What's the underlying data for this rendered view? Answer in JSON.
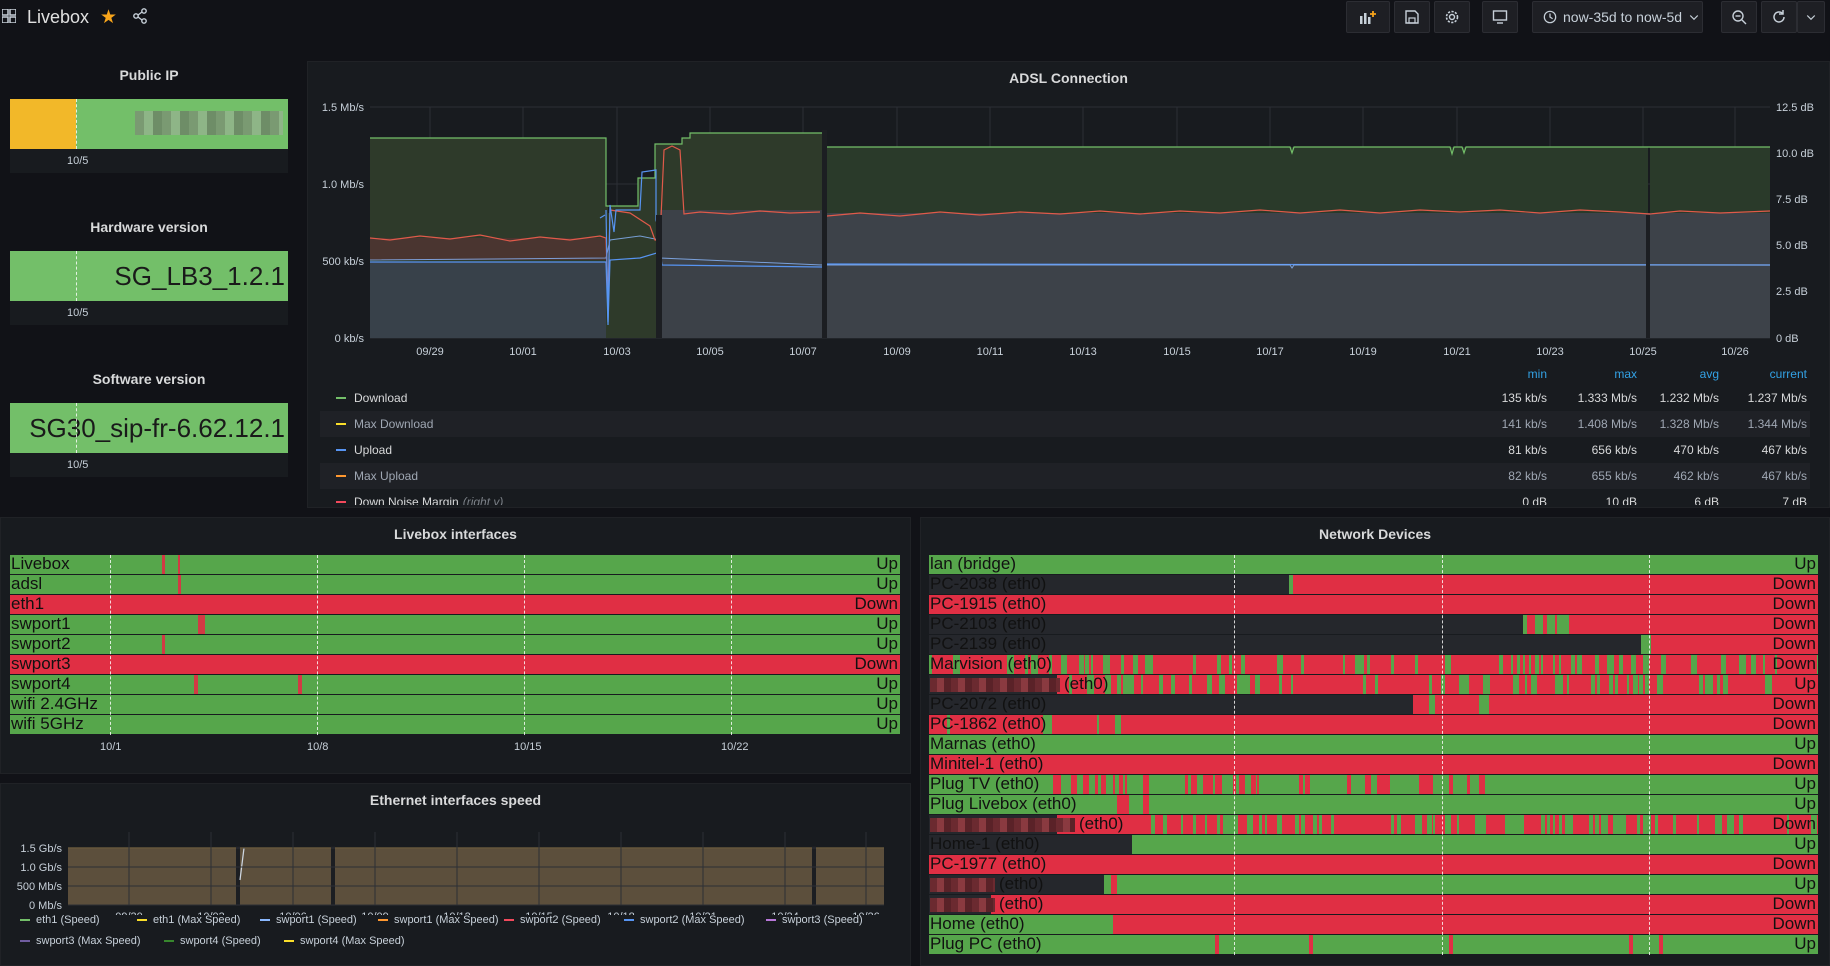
{
  "header": {
    "title": "Livebox",
    "time_range": "now-35d to now-5d"
  },
  "public_ip": {
    "title": "Public IP",
    "tick": "10/5"
  },
  "hardware": {
    "title": "Hardware version",
    "value": "SG_LB3_1.2.1",
    "tick": "10/5"
  },
  "software": {
    "title": "Software version",
    "value": "SG30_sip-fr-6.62.12.1",
    "tick": "10/5"
  },
  "adsl": {
    "title": "ADSL Connection",
    "chart_data": {
      "type": "line",
      "title": "ADSL Connection",
      "x_ticks": [
        "09/29",
        "10/01",
        "10/03",
        "10/05",
        "10/07",
        "10/09",
        "10/11",
        "10/13",
        "10/15",
        "10/17",
        "10/19",
        "10/21",
        "10/23",
        "10/25",
        "10/26"
      ],
      "y_left_ticks": [
        "0 kb/s",
        "500 kb/s",
        "1.0 Mb/s",
        "1.5 Mb/s"
      ],
      "y_right_ticks": [
        "0 dB",
        "2.5 dB",
        "5.0 dB",
        "7.5 dB",
        "10.0 dB",
        "12.5 dB"
      ],
      "series": [
        {
          "name": "Download",
          "color": "#73bf69",
          "approx_value": "1.237 Mb/s"
        },
        {
          "name": "Max Download",
          "color": "#fade2a",
          "approx_value": "1.344 Mb/s"
        },
        {
          "name": "Upload",
          "color": "#5794f2",
          "approx_value": "467 kb/s"
        },
        {
          "name": "Max Upload",
          "color": "#ff9830",
          "approx_value": "467 kb/s"
        },
        {
          "name": "Down Noise Margin (right y)",
          "color": "#f2495c",
          "approx_value": "7 dB"
        }
      ]
    },
    "legend_headers": {
      "min": "min",
      "max": "max",
      "avg": "avg",
      "current": "current"
    },
    "legend": [
      {
        "name": "Download",
        "min": "135 kb/s",
        "max": "1.333 Mb/s",
        "avg": "1.232 Mb/s",
        "current": "1.237 Mb/s",
        "color": "#73bf69"
      },
      {
        "name": "Max Download",
        "min": "141 kb/s",
        "max": "1.408 Mb/s",
        "avg": "1.328 Mb/s",
        "current": "1.344 Mb/s",
        "color": "#fade2a"
      },
      {
        "name": "Upload",
        "min": "81 kb/s",
        "max": "656 kb/s",
        "avg": "470 kb/s",
        "current": "467 kb/s",
        "color": "#5794f2"
      },
      {
        "name": "Max Upload",
        "min": "82 kb/s",
        "max": "655 kb/s",
        "avg": "462 kb/s",
        "current": "467 kb/s",
        "color": "#ff9830"
      },
      {
        "name": "Down Noise Margin",
        "suffix": "(right y)",
        "min": "0 dB",
        "max": "10 dB",
        "avg": "6 dB",
        "current": "7 dB",
        "color": "#f2495c"
      }
    ]
  },
  "interfaces": {
    "title": "Livebox interfaces",
    "ticks": [
      "10/1",
      "10/8",
      "10/15",
      "10/22"
    ],
    "rows": [
      {
        "label": "Livebox",
        "state": "Up",
        "color": "#56a64b"
      },
      {
        "label": "adsl",
        "state": "Up",
        "color": "#56a64b"
      },
      {
        "label": "eth1",
        "state": "Down",
        "color": "#e02f44"
      },
      {
        "label": "swport1",
        "state": "Up",
        "color": "#56a64b"
      },
      {
        "label": "swport2",
        "state": "Up",
        "color": "#56a64b"
      },
      {
        "label": "swport3",
        "state": "Down",
        "color": "#e02f44"
      },
      {
        "label": "swport4",
        "state": "Up",
        "color": "#56a64b"
      },
      {
        "label": "wifi 2.4GHz",
        "state": "Up",
        "color": "#56a64b"
      },
      {
        "label": "wifi 5GHz",
        "state": "Up",
        "color": "#56a64b"
      }
    ]
  },
  "devices": {
    "title": "Network Devices",
    "rows": [
      {
        "label": "lan (bridge)",
        "state": "Up"
      },
      {
        "label": "PC-2038 (eth0)",
        "state": "Down"
      },
      {
        "label": "PC-1915 (eth0)",
        "state": "Down"
      },
      {
        "label": "PC-2103 (eth0)",
        "state": "Down"
      },
      {
        "label": "PC-2139 (eth0)",
        "state": "Down"
      },
      {
        "label": "Marvision (eth0)",
        "state": "Down"
      },
      {
        "label": "(eth0)",
        "state": "Up"
      },
      {
        "label": "PC-2072 (eth0)",
        "state": "Down"
      },
      {
        "label": "PC-1862 (eth0)",
        "state": "Down"
      },
      {
        "label": "Marnas (eth0)",
        "state": "Up"
      },
      {
        "label": "Minitel-1 (eth0)",
        "state": "Down"
      },
      {
        "label": "Plug TV (eth0)",
        "state": "Up"
      },
      {
        "label": "Plug Livebox (eth0)",
        "state": "Up"
      },
      {
        "label": "(eth0)",
        "state": "Down"
      },
      {
        "label": "Home-1 (eth0)",
        "state": "Up"
      },
      {
        "label": "PC-1977 (eth0)",
        "state": "Down"
      },
      {
        "label": "(eth0)",
        "state": "Up"
      },
      {
        "label": "(eth0)",
        "state": "Down"
      },
      {
        "label": "Home (eth0)",
        "state": "Down"
      },
      {
        "label": "Plug PC (eth0)",
        "state": "Up"
      }
    ]
  },
  "ethernet": {
    "title": "Ethernet interfaces speed",
    "y_ticks": [
      "0 Mb/s",
      "500 Mb/s",
      "1.0 Gb/s",
      "1.5 Gb/s"
    ],
    "x_ticks": [
      "09/30",
      "10/03",
      "10/06",
      "10/09",
      "10/12",
      "10/15",
      "10/18",
      "10/21",
      "10/24",
      "10/26"
    ],
    "legend": [
      {
        "name": "eth1 (Speed)",
        "color": "#73bf69"
      },
      {
        "name": "eth1 (Max Speed)",
        "color": "#fade2a"
      },
      {
        "name": "swport1 (Speed)",
        "color": "#8ab8ff"
      },
      {
        "name": "swport1 (Max Speed)",
        "color": "#ff9830"
      },
      {
        "name": "swport2 (Speed)",
        "color": "#f2495c"
      },
      {
        "name": "swport2 (Max Speed)",
        "color": "#5794f2"
      },
      {
        "name": "swport3 (Speed)",
        "color": "#b877d9"
      },
      {
        "name": "swport3 (Max Speed)",
        "color": "#705da0"
      },
      {
        "name": "swport4 (Speed)",
        "color": "#37872d"
      },
      {
        "name": "swport4 (Max Speed)",
        "color": "#fade2a"
      }
    ]
  }
}
